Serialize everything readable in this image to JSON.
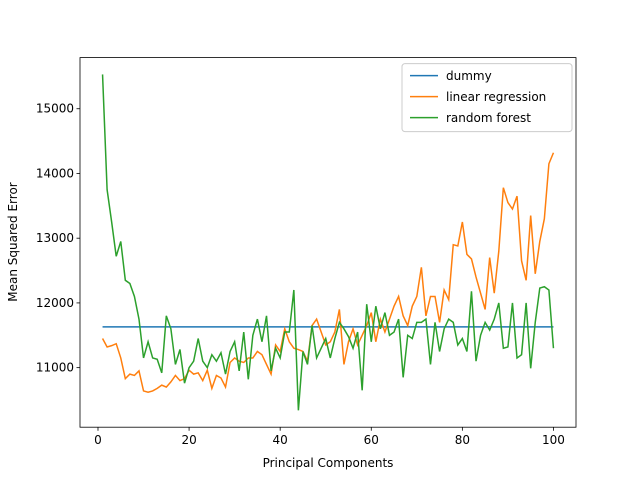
{
  "chart_data": {
    "type": "line",
    "xlabel": "Principal Components",
    "ylabel": "Mean Squared Error",
    "x": [
      1,
      2,
      3,
      4,
      5,
      6,
      7,
      8,
      9,
      10,
      11,
      12,
      13,
      14,
      15,
      16,
      17,
      18,
      19,
      20,
      21,
      22,
      23,
      24,
      25,
      26,
      27,
      28,
      29,
      30,
      31,
      32,
      33,
      34,
      35,
      36,
      37,
      38,
      39,
      40,
      41,
      42,
      43,
      44,
      45,
      46,
      47,
      48,
      49,
      50,
      51,
      52,
      53,
      54,
      55,
      56,
      57,
      58,
      59,
      60,
      61,
      62,
      63,
      64,
      65,
      66,
      67,
      68,
      69,
      70,
      71,
      72,
      73,
      74,
      75,
      76,
      77,
      78,
      79,
      80,
      81,
      82,
      83,
      84,
      85,
      86,
      87,
      88,
      89,
      90,
      91,
      92,
      93,
      94,
      95,
      96,
      97,
      98,
      99,
      100
    ],
    "series": [
      {
        "name": "dummy",
        "color": "#1f77b4",
        "values": [
          11630,
          11630,
          11630,
          11630,
          11630,
          11630,
          11630,
          11630,
          11630,
          11630,
          11630,
          11630,
          11630,
          11630,
          11630,
          11630,
          11630,
          11630,
          11630,
          11630,
          11630,
          11630,
          11630,
          11630,
          11630,
          11630,
          11630,
          11630,
          11630,
          11630,
          11630,
          11630,
          11630,
          11630,
          11630,
          11630,
          11630,
          11630,
          11630,
          11630,
          11630,
          11630,
          11630,
          11630,
          11630,
          11630,
          11630,
          11630,
          11630,
          11630,
          11630,
          11630,
          11630,
          11630,
          11630,
          11630,
          11630,
          11630,
          11630,
          11630,
          11630,
          11630,
          11630,
          11630,
          11630,
          11630,
          11630,
          11630,
          11630,
          11630,
          11630,
          11630,
          11630,
          11630,
          11630,
          11630,
          11630,
          11630,
          11630,
          11630,
          11630,
          11630,
          11630,
          11630,
          11630,
          11630,
          11630,
          11630,
          11630,
          11630,
          11630,
          11630,
          11630,
          11630,
          11630,
          11630,
          11630,
          11630,
          11630,
          11630
        ]
      },
      {
        "name": "linear regression",
        "color": "#ff7f0e",
        "values": [
          11450,
          11320,
          11340,
          11370,
          11150,
          10830,
          10900,
          10880,
          10950,
          10640,
          10620,
          10640,
          10680,
          10730,
          10700,
          10780,
          10880,
          10800,
          10830,
          10960,
          10900,
          10920,
          10800,
          10960,
          10680,
          10880,
          10840,
          10700,
          11080,
          11150,
          11100,
          11080,
          11150,
          11150,
          11250,
          11200,
          11050,
          10900,
          11350,
          11250,
          11600,
          11400,
          11300,
          11280,
          11250,
          11100,
          11650,
          11750,
          11550,
          11350,
          11400,
          11550,
          11900,
          11050,
          11400,
          11600,
          11350,
          11500,
          11650,
          11850,
          11400,
          11750,
          11550,
          11750,
          11950,
          12100,
          11800,
          11650,
          11950,
          12100,
          12550,
          11800,
          12100,
          12100,
          11700,
          12200,
          12050,
          12900,
          12880,
          13250,
          12750,
          12680,
          12400,
          12150,
          11900,
          12700,
          12150,
          12800,
          13780,
          13550,
          13450,
          13650,
          12650,
          12350,
          13350,
          12450,
          12950,
          13300,
          14150,
          14320
        ]
      },
      {
        "name": "random forest",
        "color": "#2ca02c",
        "values": [
          15530,
          13750,
          13250,
          12720,
          12950,
          12350,
          12300,
          12100,
          11750,
          11150,
          11400,
          11150,
          11130,
          10920,
          11800,
          11600,
          11050,
          11280,
          10760,
          11000,
          11100,
          11450,
          11100,
          11000,
          11200,
          11100,
          11230,
          10900,
          11250,
          11400,
          10950,
          11550,
          10820,
          11500,
          11750,
          11400,
          11800,
          10950,
          11300,
          11150,
          11550,
          11550,
          12200,
          10340,
          11250,
          11050,
          11650,
          11150,
          11300,
          11450,
          11150,
          11450,
          11700,
          11600,
          11480,
          11300,
          11550,
          10650,
          11980,
          11400,
          11950,
          11600,
          11850,
          11500,
          11550,
          11750,
          10850,
          11500,
          11450,
          11700,
          11700,
          11750,
          11050,
          11700,
          11250,
          11600,
          11750,
          11700,
          11350,
          11450,
          11250,
          12180,
          11100,
          11500,
          11700,
          11580,
          11750,
          12000,
          11300,
          11320,
          12000,
          11150,
          11200,
          12000,
          10990,
          11700,
          12230,
          12250,
          12200,
          11300
        ]
      }
    ],
    "xlim": [
      -3.95,
      104.95
    ],
    "ylim": [
      10080,
      15790
    ],
    "xticks": [
      0,
      20,
      40,
      60,
      80,
      100
    ],
    "yticks": [
      11000,
      12000,
      13000,
      14000,
      15000
    ],
    "legend": "upper right"
  }
}
